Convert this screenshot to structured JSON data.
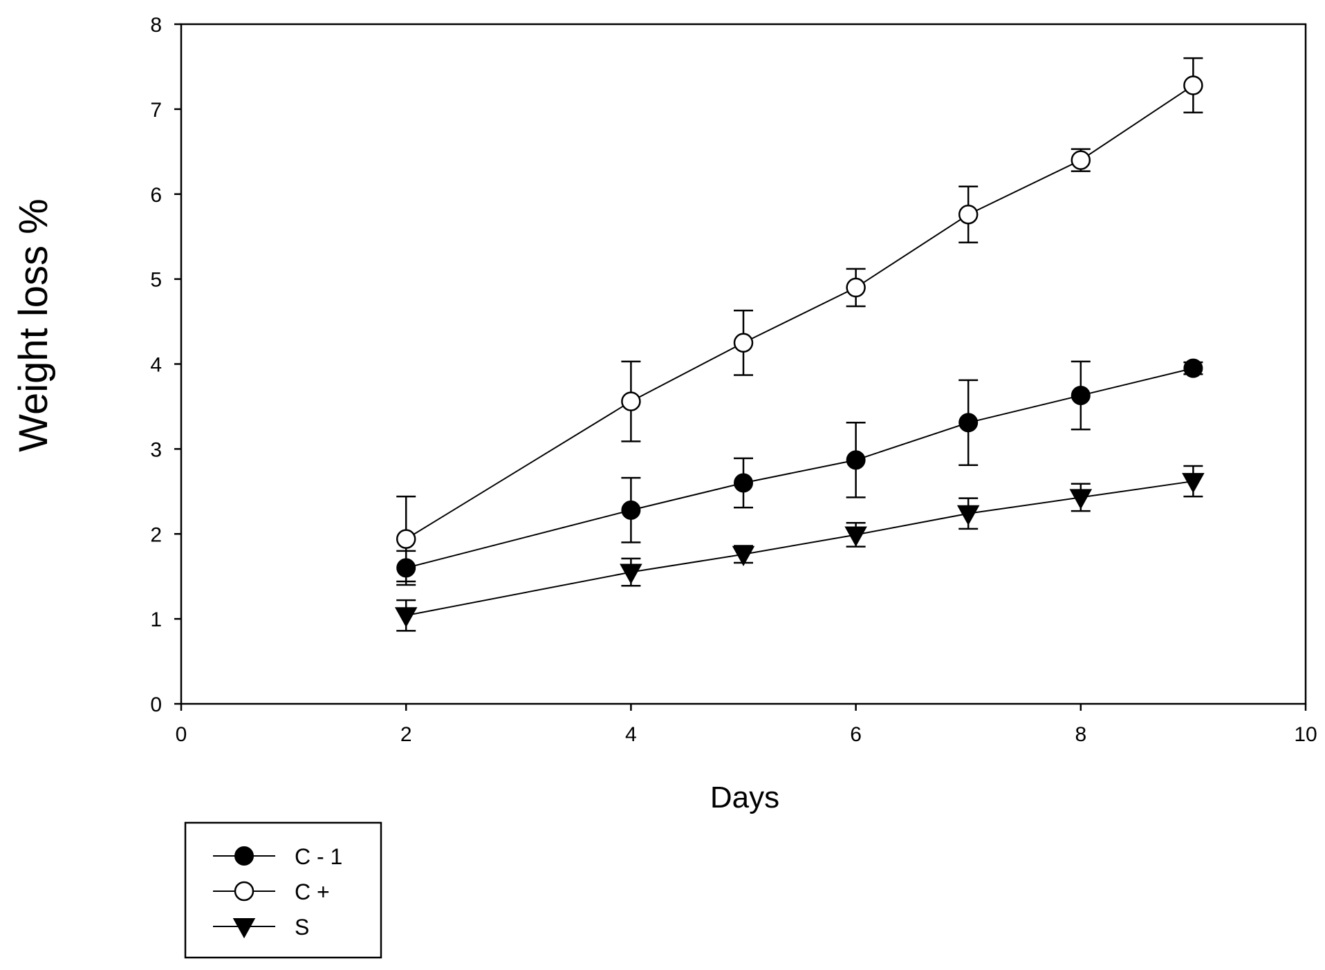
{
  "chart_data": {
    "type": "line",
    "title": "",
    "xlabel": "Days",
    "ylabel": "Weight loss %",
    "xlim": [
      0,
      10
    ],
    "ylim": [
      0,
      8
    ],
    "xticks": [
      0,
      2,
      4,
      6,
      8,
      10
    ],
    "yticks": [
      0,
      1,
      2,
      3,
      4,
      5,
      6,
      7,
      8
    ],
    "grid": false,
    "legend_position": "bottom-left",
    "x": [
      2,
      4,
      5,
      6,
      7,
      8,
      9
    ],
    "series": [
      {
        "name": "C - 1",
        "marker": "filled-circle",
        "values": [
          1.6,
          2.28,
          2.6,
          2.87,
          3.31,
          3.63,
          3.95
        ],
        "errors": [
          0.2,
          0.38,
          0.29,
          0.44,
          0.5,
          0.4,
          0.07
        ]
      },
      {
        "name": "C +",
        "marker": "open-circle",
        "values": [
          1.94,
          3.56,
          4.25,
          4.9,
          5.76,
          6.4,
          7.28
        ],
        "errors": [
          0.5,
          0.47,
          0.38,
          0.22,
          0.33,
          0.13,
          0.32
        ]
      },
      {
        "name": "S",
        "marker": "filled-triangle-down",
        "values": [
          1.04,
          1.55,
          1.76,
          1.99,
          2.24,
          2.43,
          2.62
        ],
        "errors": [
          0.18,
          0.16,
          0.1,
          0.14,
          0.18,
          0.16,
          0.18
        ]
      }
    ]
  }
}
